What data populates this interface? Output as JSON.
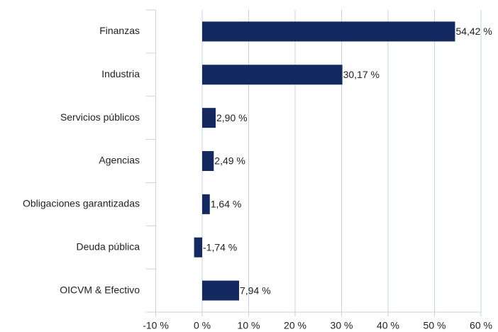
{
  "chart_data": {
    "type": "bar",
    "orientation": "horizontal",
    "categories": [
      "Finanzas",
      "Industria",
      "Servicios públicos",
      "Agencias",
      "Obligaciones garantizadas",
      "Deuda pública",
      "OICVM & Efectivo"
    ],
    "values": [
      54.42,
      30.17,
      2.9,
      2.49,
      1.64,
      -1.74,
      7.94
    ],
    "value_labels": [
      "54,42 %",
      "30,17 %",
      "2,90 %",
      "2,49 %",
      "1,64 %",
      "-1,74 %",
      "7,94 %"
    ],
    "color": "#14295f",
    "xlim": [
      -10,
      60
    ],
    "xticks": [
      {
        "value": -10,
        "label": "-10 %"
      },
      {
        "value": 0,
        "label": "0 %"
      },
      {
        "value": 10,
        "label": "10 %"
      },
      {
        "value": 20,
        "label": "20 %"
      },
      {
        "value": 30,
        "label": "30 %"
      },
      {
        "value": 40,
        "label": "40 %"
      },
      {
        "value": 50,
        "label": "50 %"
      },
      {
        "value": 60,
        "label": "60 %"
      }
    ],
    "grid": true
  }
}
